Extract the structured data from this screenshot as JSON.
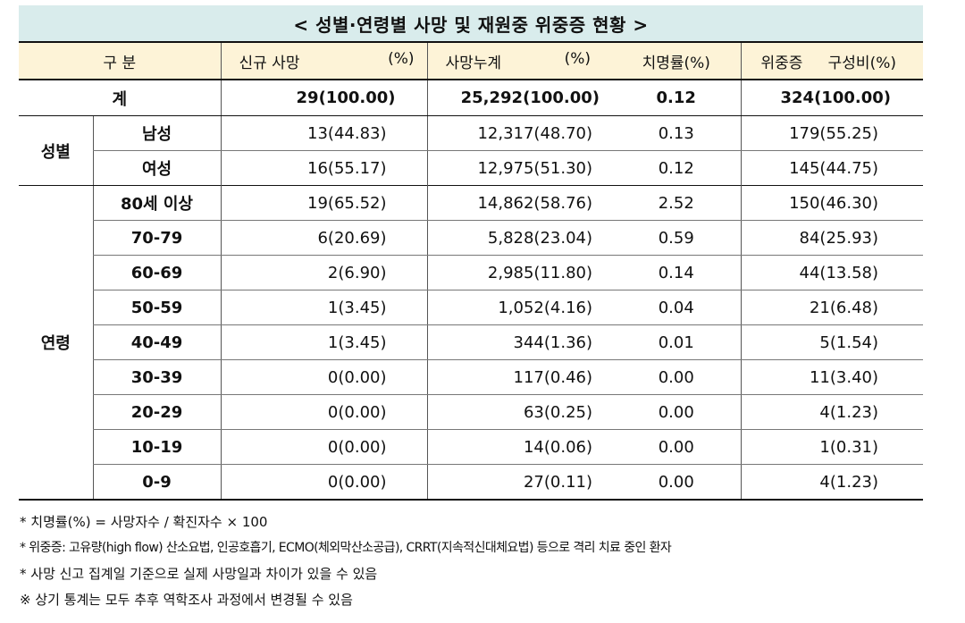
{
  "title": "< 성별·연령별 사망 및 재원중 위중증 현황 >",
  "header": {
    "category": "구 분",
    "new_deaths": "신규 사망",
    "new_deaths_unit": "(%)",
    "cum_deaths": "사망누계",
    "cum_deaths_unit": "(%)",
    "fatality": "치명률(%)",
    "severe": "위중증",
    "severe_unit": "구성비(%)"
  },
  "total": {
    "label": "계",
    "new": "29(100.00)",
    "cum": "25,292(100.00)",
    "rate": "0.12",
    "severe": "324(100.00)"
  },
  "sex": {
    "label": "성별",
    "rows": [
      {
        "label": "남성",
        "new": "13(44.83)",
        "cum": "12,317(48.70)",
        "rate": "0.13",
        "severe": "179(55.25)"
      },
      {
        "label": "여성",
        "new": "16(55.17)",
        "cum": "12,975(51.30)",
        "rate": "0.12",
        "severe": "145(44.75)"
      }
    ]
  },
  "age": {
    "label": "연령",
    "rows": [
      {
        "label": "80세 이상",
        "new": "19(65.52)",
        "cum": "14,862(58.76)",
        "rate": "2.52",
        "severe": "150(46.30)"
      },
      {
        "label": "70-79",
        "new": "6(20.69)",
        "cum": "5,828(23.04)",
        "rate": "0.59",
        "severe": "84(25.93)"
      },
      {
        "label": "60-69",
        "new": "2(6.90)",
        "cum": "2,985(11.80)",
        "rate": "0.14",
        "severe": "44(13.58)"
      },
      {
        "label": "50-59",
        "new": "1(3.45)",
        "cum": "1,052(4.16)",
        "rate": "0.04",
        "severe": "21(6.48)"
      },
      {
        "label": "40-49",
        "new": "1(3.45)",
        "cum": "344(1.36)",
        "rate": "0.01",
        "severe": "5(1.54)"
      },
      {
        "label": "30-39",
        "new": "0(0.00)",
        "cum": "117(0.46)",
        "rate": "0.00",
        "severe": "11(3.40)"
      },
      {
        "label": "20-29",
        "new": "0(0.00)",
        "cum": "63(0.25)",
        "rate": "0.00",
        "severe": "4(1.23)"
      },
      {
        "label": "10-19",
        "new": "0(0.00)",
        "cum": "14(0.06)",
        "rate": "0.00",
        "severe": "1(0.31)"
      },
      {
        "label": "0-9",
        "new": "0(0.00)",
        "cum": "27(0.11)",
        "rate": "0.00",
        "severe": "4(1.23)"
      }
    ]
  },
  "notes": [
    "* 치명률(%) = 사망자수 / 확진자수 × 100",
    "* 위중증: 고유량(high flow) 산소요법, 인공호흡기, ECMO(체외막산소공급), CRRT(지속적신대체요법) 등으로 격리 치료 중인 환자",
    "* 사망 신고 집계일 기준으로 실제 사망일과 차이가 있을 수 있음",
    "※ 상기 통계는 모두 추후 역학조사 과정에서 변경될 수 있음"
  ]
}
